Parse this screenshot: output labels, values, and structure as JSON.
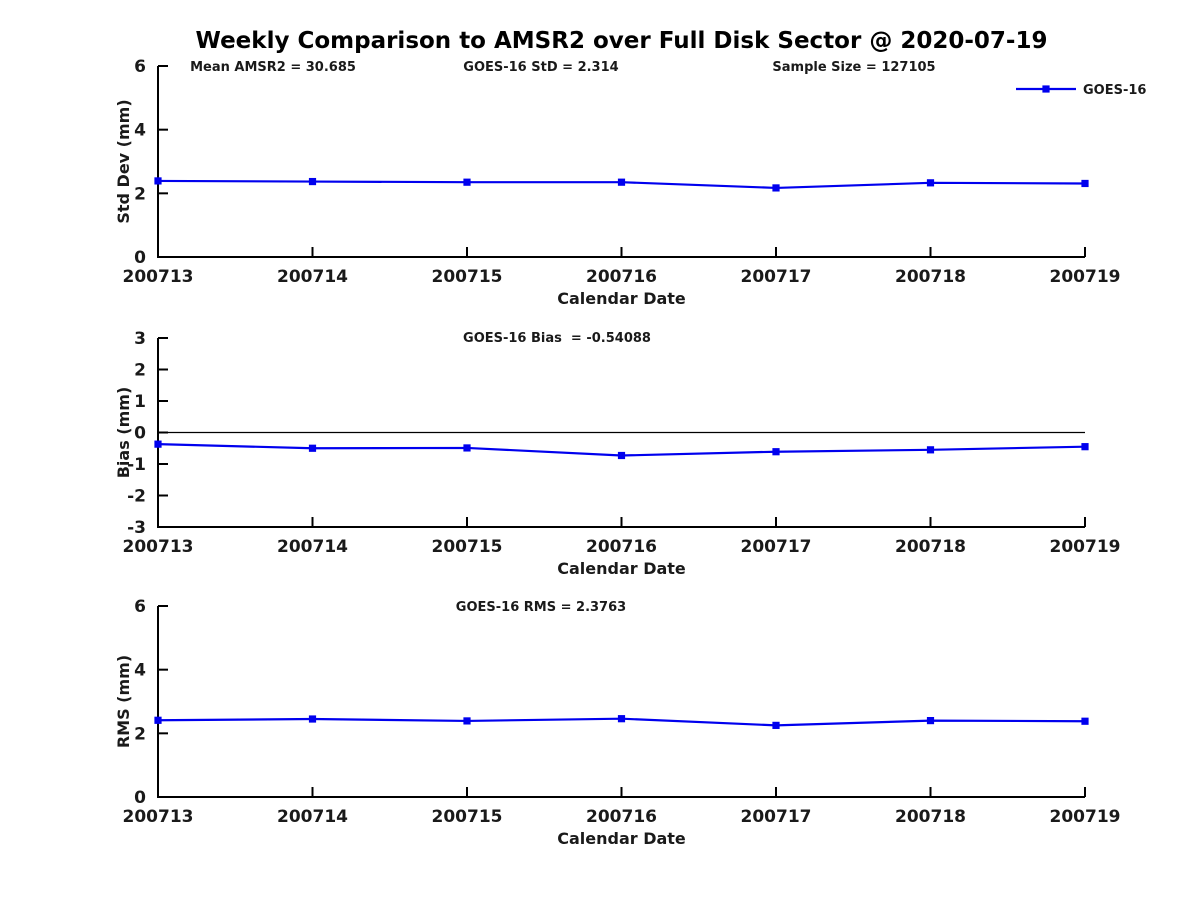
{
  "figure": {
    "title": "Weekly Comparison to AMSR2 over Full Disk Sector @ 2020-07-19",
    "background": "#ffffff",
    "text_color": "#1a1a1a",
    "axis_color": "#000000",
    "line_color": "#0000ee"
  },
  "legend": {
    "label": "GOES-16",
    "position": "top-right"
  },
  "xlabel": "Calendar Date",
  "x_categories": [
    "200713",
    "200714",
    "200715",
    "200716",
    "200717",
    "200718",
    "200719"
  ],
  "chart_data": [
    {
      "type": "line",
      "name": "std-dev-subplot",
      "annotations": [
        "Mean AMSR2 = 30.685",
        "GOES-16 StD = 2.314",
        "Sample Size = 127105"
      ],
      "ylabel": "Std Dev (mm)",
      "xlabel": "Calendar Date",
      "ylim": [
        0,
        6
      ],
      "yticks": [
        0,
        2,
        4,
        6
      ],
      "zero_line": false,
      "grid": false,
      "categories": [
        "200713",
        "200714",
        "200715",
        "200716",
        "200717",
        "200718",
        "200719"
      ],
      "series": [
        {
          "name": "GOES-16",
          "marker": "square",
          "values": [
            2.39,
            2.37,
            2.35,
            2.35,
            2.17,
            2.33,
            2.31
          ]
        }
      ]
    },
    {
      "type": "line",
      "name": "bias-subplot",
      "annotations": [
        "GOES-16 Bias  = -0.54088"
      ],
      "ylabel": "Bias (mm)",
      "xlabel": "Calendar Date",
      "ylim": [
        -3,
        3
      ],
      "yticks": [
        3,
        2,
        1,
        0,
        -1,
        -2,
        -3
      ],
      "zero_line": true,
      "grid": false,
      "categories": [
        "200713",
        "200714",
        "200715",
        "200716",
        "200717",
        "200718",
        "200719"
      ],
      "series": [
        {
          "name": "GOES-16",
          "marker": "square",
          "values": [
            -0.37,
            -0.5,
            -0.49,
            -0.73,
            -0.61,
            -0.55,
            -0.45
          ]
        }
      ]
    },
    {
      "type": "line",
      "name": "rms-subplot",
      "annotations": [
        "GOES-16 RMS = 2.3763"
      ],
      "ylabel": "RMS (mm)",
      "xlabel": "Calendar Date",
      "ylim": [
        0,
        6
      ],
      "yticks": [
        0,
        2,
        4,
        6
      ],
      "zero_line": false,
      "grid": false,
      "categories": [
        "200713",
        "200714",
        "200715",
        "200716",
        "200717",
        "200718",
        "200719"
      ],
      "series": [
        {
          "name": "GOES-16",
          "marker": "square",
          "values": [
            2.41,
            2.45,
            2.39,
            2.46,
            2.25,
            2.4,
            2.38
          ]
        }
      ]
    }
  ]
}
